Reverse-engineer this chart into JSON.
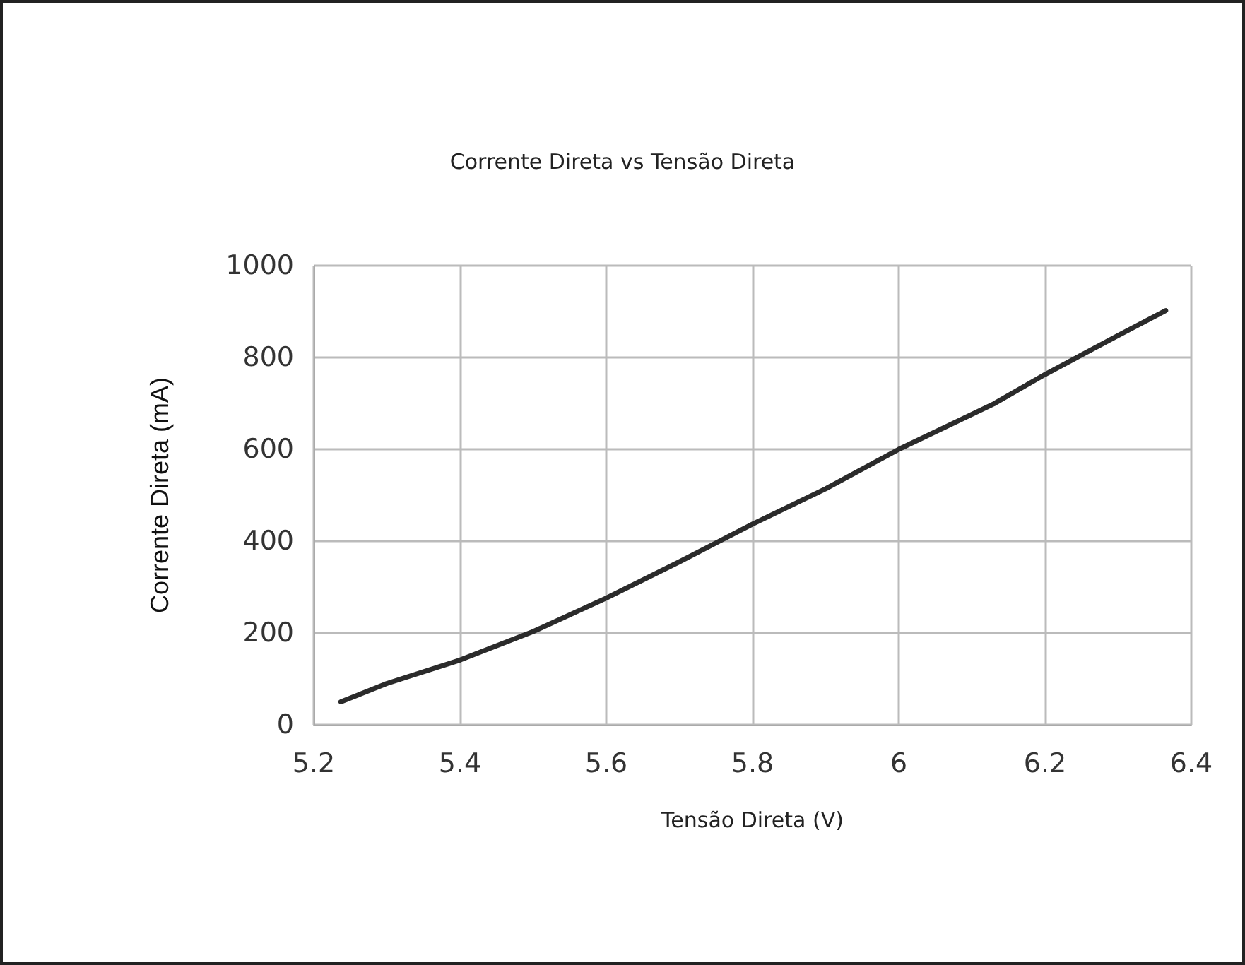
{
  "chart_data": {
    "type": "line",
    "title": "Corrente Direta vs Tensão Direta",
    "xlabel": "Tensão Direta (V)",
    "ylabel": "Corrente Direta (mA)",
    "x": [
      5.237,
      5.3,
      5.4,
      5.5,
      5.6,
      5.7,
      5.8,
      5.9,
      6.0,
      6.13,
      6.2,
      6.3,
      6.365
    ],
    "series": [
      {
        "color": "#2b2b2b",
        "values": [
          50,
          90,
          141,
          203,
          276,
          355,
          437,
          514,
          600,
          699,
          763,
          848,
          902
        ]
      }
    ],
    "xlim": [
      5.2,
      6.4
    ],
    "xticks": [
      5.2,
      5.4,
      5.6,
      5.8,
      6,
      6.2,
      6.4
    ],
    "ylim": [
      0,
      1000
    ],
    "yticks": [
      0,
      200,
      400,
      600,
      800,
      1000
    ],
    "grid": true,
    "marker": "none",
    "line_style": "solid"
  }
}
